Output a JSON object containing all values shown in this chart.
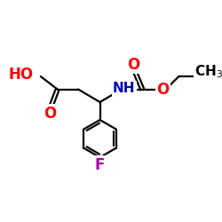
{
  "background_color": "#ffffff",
  "atom_colors": {
    "C": "#000000",
    "O": "#ff0000",
    "N": "#0000bb",
    "F": "#aa00aa",
    "H": "#000000"
  },
  "bond_color": "#000000",
  "bond_width": 1.6,
  "font_size": 11,
  "xlim": [
    0,
    10
  ],
  "ylim": [
    0,
    10
  ]
}
